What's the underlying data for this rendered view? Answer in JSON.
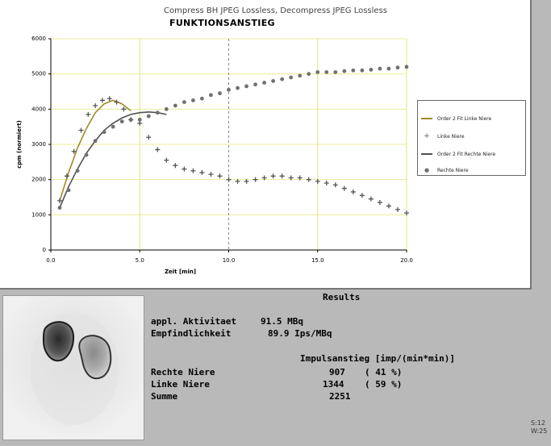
{
  "header": {
    "compress_caption": "Compress BH JPEG Lossless, Decompress JPEG Lossless",
    "chart_title": "FUNKTIONSANSTIEG"
  },
  "chart_data": {
    "type": "scatter",
    "title": "FUNKTIONSANSTIEG",
    "xlabel": "Zeit [min]",
    "ylabel": "cpm (normiert)",
    "xlim": [
      0,
      20
    ],
    "ylim": [
      0,
      6000
    ],
    "xticks": [
      "0.0",
      "5.0",
      "10.0",
      "15.0",
      "20.0"
    ],
    "yticks": [
      "0",
      "1000",
      "2000",
      "3000",
      "4000",
      "5000",
      "6000"
    ],
    "legend_position": "right",
    "series": [
      {
        "name": "Order 2 Fit Linke Niere",
        "kind": "line",
        "color": "#a08a28",
        "x": [
          0.5,
          1.0,
          1.5,
          2.0,
          2.5,
          3.0,
          3.5,
          4.0,
          4.5
        ],
        "y": [
          1400,
          2200,
          2900,
          3450,
          3900,
          4150,
          4250,
          4150,
          3950
        ]
      },
      {
        "name": "Linke Niere",
        "kind": "marker",
        "marker": "+",
        "color": "#555555",
        "x": [
          0.5,
          0.9,
          1.3,
          1.7,
          2.1,
          2.5,
          2.9,
          3.3,
          3.7,
          4.1,
          4.5,
          5.0,
          5.5,
          6.0,
          6.5,
          7.0,
          7.5,
          8.0,
          8.5,
          9.0,
          9.5,
          10.0,
          10.5,
          11.0,
          11.5,
          12.0,
          12.5,
          13.0,
          13.5,
          14.0,
          14.5,
          15.0,
          15.5,
          16.0,
          16.5,
          17.0,
          17.5,
          18.0,
          18.5,
          19.0,
          19.5,
          20.0
        ],
        "y": [
          1400,
          2100,
          2800,
          3400,
          3850,
          4100,
          4250,
          4300,
          4200,
          4000,
          3700,
          3600,
          3200,
          2850,
          2550,
          2400,
          2300,
          2250,
          2200,
          2150,
          2100,
          2000,
          1950,
          1950,
          2000,
          2050,
          2100,
          2100,
          2050,
          2050,
          2000,
          1950,
          1900,
          1850,
          1750,
          1650,
          1550,
          1450,
          1350,
          1250,
          1150,
          1050
        ]
      },
      {
        "name": "Order 2 Fit Rechte Niere",
        "kind": "line",
        "color": "#505050",
        "x": [
          0.5,
          1.0,
          1.5,
          2.0,
          2.5,
          3.0,
          3.5,
          4.0,
          4.5,
          5.0,
          5.5,
          6.0,
          6.5
        ],
        "y": [
          1200,
          1800,
          2300,
          2750,
          3100,
          3400,
          3600,
          3750,
          3850,
          3900,
          3920,
          3900,
          3850
        ]
      },
      {
        "name": "Rechte Niere",
        "kind": "marker",
        "marker": "o",
        "color": "#707070",
        "x": [
          0.5,
          1.0,
          1.5,
          2.0,
          2.5,
          3.0,
          3.5,
          4.0,
          4.5,
          5.0,
          5.5,
          6.0,
          6.5,
          7.0,
          7.5,
          8.0,
          8.5,
          9.0,
          9.5,
          10.0,
          10.5,
          11.0,
          11.5,
          12.0,
          12.5,
          13.0,
          13.5,
          14.0,
          14.5,
          15.0,
          15.5,
          16.0,
          16.5,
          17.0,
          17.5,
          18.0,
          18.5,
          19.0,
          19.5,
          20.0
        ],
        "y": [
          1200,
          1700,
          2250,
          2700,
          3100,
          3350,
          3500,
          3650,
          3700,
          3700,
          3800,
          3900,
          4000,
          4100,
          4200,
          4250,
          4300,
          4400,
          4450,
          4550,
          4600,
          4650,
          4700,
          4750,
          4800,
          4850,
          4900,
          4950,
          5000,
          5050,
          5050,
          5050,
          5080,
          5100,
          5100,
          5120,
          5150,
          5150,
          5180,
          5200
        ]
      }
    ]
  },
  "results": {
    "title": "Results",
    "appl_label": "appl. Aktivitaet",
    "appl_value": "91.5 MBq",
    "empf_label": "Empfindlichkeit",
    "empf_value": "89.9 Ips/MBq",
    "impuls_header": "Impulsanstieg [imp/(min*min)]",
    "rows": [
      {
        "label": "Rechte Niere",
        "value": "907",
        "percent": "( 41 %)"
      },
      {
        "label": "Linke Niere",
        "value": "1344",
        "percent": "( 59 %)"
      },
      {
        "label": "Summe",
        "value": "2251",
        "percent": ""
      }
    ]
  },
  "corner": {
    "line1": "S:12",
    "line2": "W:25"
  }
}
